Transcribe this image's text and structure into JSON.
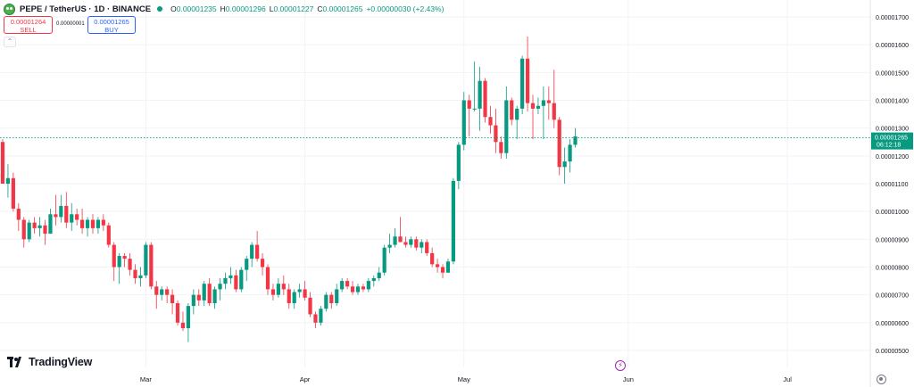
{
  "header": {
    "title": "PEPE / TetherUS · 1D · BINANCE",
    "ohlc": [
      {
        "label": "O",
        "value": "0.00001235"
      },
      {
        "label": "H",
        "value": "0.00001296"
      },
      {
        "label": "L",
        "value": "0.00001227"
      },
      {
        "label": "C",
        "value": "0.00001265"
      },
      {
        "label": "",
        "value": "+0.00000030 (+2.43%)"
      }
    ]
  },
  "trade": {
    "sell_price": "0.00001264",
    "sell_label": "SELL",
    "spread": "0.00000001",
    "buy_price": "0.00001265",
    "buy_label": "BUY"
  },
  "brand": "TradingView",
  "colors": {
    "up": "#089981",
    "down": "#f23645",
    "grid": "#f0f3fa",
    "axis_text": "#131722"
  },
  "icons": [
    "pepe-logo-icon",
    "market-status-icon",
    "collapse-icon",
    "tradingview-logo-icon",
    "lightning-icon",
    "settings-gear-icon"
  ],
  "chart_data": {
    "type": "candlestick",
    "title": "PEPE / TetherUS · 1D · BINANCE",
    "ylim": [
      4.5e-06,
      1.75e-05
    ],
    "yticks": [
      5e-06,
      6e-06,
      7e-06,
      8e-06,
      9e-06,
      1e-05,
      1.1e-05,
      1.2e-05,
      1.3e-05,
      1.4e-05,
      1.5e-05,
      1.6e-05,
      1.7e-05
    ],
    "ytick_labels": [
      "0.00000500",
      "0.00000600",
      "0.00000700",
      "0.00000800",
      "0.00000900",
      "0.00001000",
      "0.00001100",
      "0.00001200",
      "0.00001300",
      "0.00001400",
      "0.00001500",
      "0.00001600",
      "0.00001700"
    ],
    "xtick_labels": [
      "Mar",
      "Apr",
      "May",
      "Jun",
      "Jul"
    ],
    "xtick_index": [
      27,
      57,
      87,
      118,
      148
    ],
    "last_price": 1.265e-05,
    "last_price_label": "0.00001265",
    "countdown": "06:12:18",
    "grid": true,
    "series": [
      {
        "values": [
          [
            1.25e-05,
            1.26e-05,
            1.1e-05,
            1.1e-05
          ],
          [
            1.1e-05,
            1.17e-05,
            1.05e-05,
            1.12e-05
          ],
          [
            1.12e-05,
            1.14e-05,
            1e-05,
            1.01e-05
          ],
          [
            1.01e-05,
            1.03e-05,
            9.3e-06,
            9.7e-06
          ],
          [
            9.7e-06,
            9.8e-06,
            8.7e-06,
            9e-06
          ],
          [
            9e-06,
            9.7e-06,
            8.9e-06,
            9.6e-06
          ],
          [
            9.6e-06,
            9.8e-06,
            9.2e-06,
            9.4e-06
          ],
          [
            9.4e-06,
            9.8e-06,
            9.1e-06,
            9.5e-06
          ],
          [
            9.5e-06,
            9.7e-06,
            8.8e-06,
            9.2e-06
          ],
          [
            9.2e-06,
            1.01e-05,
            9.2e-06,
            9.9e-06
          ],
          [
            9.9e-06,
            1.06e-05,
            9.5e-06,
            9.8e-06
          ],
          [
            9.8e-06,
            1.06e-05,
            9.6e-06,
            1.02e-05
          ],
          [
            1.02e-05,
            1.07e-05,
            9.4e-06,
            9.6e-06
          ],
          [
            9.6e-06,
            1.03e-05,
            9.3e-06,
            9.9e-06
          ],
          [
            9.9e-06,
            1.01e-05,
            9.5e-06,
            9.7e-06
          ],
          [
            9.7e-06,
            1.01e-05,
            9.2e-06,
            9.4e-06
          ],
          [
            9.4e-06,
            9.8e-06,
            9.1e-06,
            9.7e-06
          ],
          [
            9.7e-06,
            9.9e-06,
            9.2e-06,
            9.4e-06
          ],
          [
            9.4e-06,
            9.8e-06,
            9.2e-06,
            9.7e-06
          ],
          [
            9.7e-06,
            9.9e-06,
            9.3e-06,
            9.5e-06
          ],
          [
            9.5e-06,
            9.6e-06,
            8.7e-06,
            8.8e-06
          ],
          [
            8.8e-06,
            8.9e-06,
            7.5e-06,
            8e-06
          ],
          [
            8e-06,
            8.5e-06,
            7.4e-06,
            8.4e-06
          ],
          [
            8.4e-06,
            8.5e-06,
            8e-06,
            8.3e-06
          ],
          [
            8.3e-06,
            8.5e-06,
            7.7e-06,
            7.9e-06
          ],
          [
            7.9e-06,
            8.1e-06,
            7.4e-06,
            7.6e-06
          ],
          [
            7.6e-06,
            8e-06,
            7.3e-06,
            7.7e-06
          ],
          [
            7.7e-06,
            8.9e-06,
            7.6e-06,
            8.8e-06
          ],
          [
            8.8e-06,
            8.9e-06,
            7.2e-06,
            7.3e-06
          ],
          [
            7.3e-06,
            7.5e-06,
            6.5e-06,
            7e-06
          ],
          [
            7e-06,
            7.3e-06,
            6.8e-06,
            7.2e-06
          ],
          [
            7.2e-06,
            7.3e-06,
            6.7e-06,
            7e-06
          ],
          [
            7e-06,
            7.2e-06,
            6.3e-06,
            6.7e-06
          ],
          [
            6.7e-06,
            6.8e-06,
            5.9e-06,
            6e-06
          ],
          [
            6e-06,
            6.4e-06,
            5.7e-06,
            5.8e-06
          ],
          [
            5.8e-06,
            6.7e-06,
            5.3e-06,
            6.6e-06
          ],
          [
            6.6e-06,
            7.2e-06,
            6.3e-06,
            7e-06
          ],
          [
            7e-06,
            7.2e-06,
            6.6e-06,
            6.8e-06
          ],
          [
            6.8e-06,
            7.5e-06,
            6.6e-06,
            7.4e-06
          ],
          [
            7.4e-06,
            7.6e-06,
            6.6e-06,
            6.7e-06
          ],
          [
            6.7e-06,
            7.3e-06,
            6.5e-06,
            7.2e-06
          ],
          [
            7.2e-06,
            7.6e-06,
            6.8e-06,
            7.4e-06
          ],
          [
            7.4e-06,
            7.8e-06,
            7.2e-06,
            7.6e-06
          ],
          [
            7.6e-06,
            8e-06,
            7.4e-06,
            7.7e-06
          ],
          [
            7.7e-06,
            7.9e-06,
            7.1e-06,
            7.2e-06
          ],
          [
            7.2e-06,
            8e-06,
            7.1e-06,
            7.9e-06
          ],
          [
            7.9e-06,
            8.4e-06,
            7.5e-06,
            8.3e-06
          ],
          [
            8.3e-06,
            8.9e-06,
            8e-06,
            8.8e-06
          ],
          [
            8.8e-06,
            9.3e-06,
            8.2e-06,
            8.3e-06
          ],
          [
            8.3e-06,
            8.5e-06,
            7.7e-06,
            8e-06
          ],
          [
            8e-06,
            8.1e-06,
            7e-06,
            7.2e-06
          ],
          [
            7.2e-06,
            7.4e-06,
            6.8e-06,
            7e-06
          ],
          [
            7e-06,
            7.6e-06,
            6.9e-06,
            7.4e-06
          ],
          [
            7.4e-06,
            7.7e-06,
            7e-06,
            7.2e-06
          ],
          [
            7.2e-06,
            7.4e-06,
            6.5e-06,
            6.7e-06
          ],
          [
            6.7e-06,
            7.2e-06,
            6.5e-06,
            7.1e-06
          ],
          [
            7.1e-06,
            7.4e-06,
            6.9e-06,
            7.2e-06
          ],
          [
            7.2e-06,
            7.5e-06,
            6.8e-06,
            6.9e-06
          ],
          [
            6.9e-06,
            7.1e-06,
            6.2e-06,
            6.3e-06
          ],
          [
            6.3e-06,
            6.4e-06,
            5.8e-06,
            6e-06
          ],
          [
            6e-06,
            6.6e-06,
            5.9e-06,
            6.5e-06
          ],
          [
            6.5e-06,
            7.1e-06,
            6.4e-06,
            7e-06
          ],
          [
            7e-06,
            7.1e-06,
            6.5e-06,
            6.7e-06
          ],
          [
            6.7e-06,
            7.4e-06,
            6.6e-06,
            7.2e-06
          ],
          [
            7.2e-06,
            7.6e-06,
            7.1e-06,
            7.5e-06
          ],
          [
            7.5e-06,
            7.6e-06,
            7.2e-06,
            7.3e-06
          ],
          [
            7.3e-06,
            7.5e-06,
            7e-06,
            7.1e-06
          ],
          [
            7.1e-06,
            7.4e-06,
            7e-06,
            7.3e-06
          ],
          [
            7.3e-06,
            7.4e-06,
            7.1e-06,
            7.2e-06
          ],
          [
            7.2e-06,
            7.6e-06,
            7.1e-06,
            7.5e-06
          ],
          [
            7.5e-06,
            7.7e-06,
            7.3e-06,
            7.6e-06
          ],
          [
            7.6e-06,
            8e-06,
            7.5e-06,
            7.8e-06
          ],
          [
            7.8e-06,
            8.8e-06,
            7.7e-06,
            8.7e-06
          ],
          [
            8.7e-06,
            9.2e-06,
            8.5e-06,
            8.8e-06
          ],
          [
            8.8e-06,
            9.4e-06,
            8.7e-06,
            9.1e-06
          ],
          [
            9.1e-06,
            9.8e-06,
            8.9e-06,
            8.9e-06
          ],
          [
            8.9e-06,
            9.1e-06,
            8.7e-06,
            8.8e-06
          ],
          [
            8.8e-06,
            9.1e-06,
            8.7e-06,
            9e-06
          ],
          [
            9e-06,
            9.1e-06,
            8.6e-06,
            8.7e-06
          ],
          [
            8.7e-06,
            9e-06,
            8.5e-06,
            8.9e-06
          ],
          [
            8.9e-06,
            9e-06,
            8.4e-06,
            8.5e-06
          ],
          [
            8.5e-06,
            8.7e-06,
            8e-06,
            8.1e-06
          ],
          [
            8.1e-06,
            8.3e-06,
            7.8e-06,
            8e-06
          ],
          [
            8e-06,
            8.1e-06,
            7.6e-06,
            7.8e-06
          ],
          [
            7.8e-06,
            8.3e-06,
            7.8e-06,
            8.2e-06
          ],
          [
            8.2e-06,
            1.12e-05,
            8.1e-06,
            1.11e-05
          ],
          [
            1.11e-05,
            1.25e-05,
            1.08e-05,
            1.24e-05
          ],
          [
            1.24e-05,
            1.43e-05,
            1.22e-05,
            1.4e-05
          ],
          [
            1.4e-05,
            1.42e-05,
            1.27e-05,
            1.37e-05
          ],
          [
            1.37e-05,
            1.54e-05,
            1.36e-05,
            1.37e-05
          ],
          [
            1.37e-05,
            1.52e-05,
            1.29e-05,
            1.47e-05
          ],
          [
            1.47e-05,
            1.48e-05,
            1.32e-05,
            1.34e-05
          ],
          [
            1.34e-05,
            1.38e-05,
            1.28e-05,
            1.31e-05
          ],
          [
            1.31e-05,
            1.37e-05,
            1.21e-05,
            1.25e-05
          ],
          [
            1.25e-05,
            1.27e-05,
            1.19e-05,
            1.21e-05
          ],
          [
            1.21e-05,
            1.45e-05,
            1.19e-05,
            1.4e-05
          ],
          [
            1.4e-05,
            1.41e-05,
            1.31e-05,
            1.33e-05
          ],
          [
            1.33e-05,
            1.38e-05,
            1.26e-05,
            1.37e-05
          ],
          [
            1.37e-05,
            1.56e-05,
            1.35e-05,
            1.55e-05
          ],
          [
            1.55e-05,
            1.63e-05,
            1.36e-05,
            1.39e-05
          ],
          [
            1.39e-05,
            1.42e-05,
            1.26e-05,
            1.37e-05
          ],
          [
            1.37e-05,
            1.41e-05,
            1.35e-05,
            1.38e-05
          ],
          [
            1.38e-05,
            1.45e-05,
            1.26e-05,
            1.4e-05
          ],
          [
            1.4e-05,
            1.45e-05,
            1.33e-05,
            1.39e-05
          ],
          [
            1.39e-05,
            1.51e-05,
            1.3e-05,
            1.33e-05
          ],
          [
            1.33e-05,
            1.34e-05,
            1.13e-05,
            1.16e-05
          ],
          [
            1.16e-05,
            1.23e-05,
            1.1e-05,
            1.18e-05
          ],
          [
            1.18e-05,
            1.26e-05,
            1.14e-05,
            1.24e-05
          ],
          [
            1.24e-05,
            1.3e-05,
            1.23e-05,
            1.27e-05
          ]
        ]
      }
    ]
  }
}
